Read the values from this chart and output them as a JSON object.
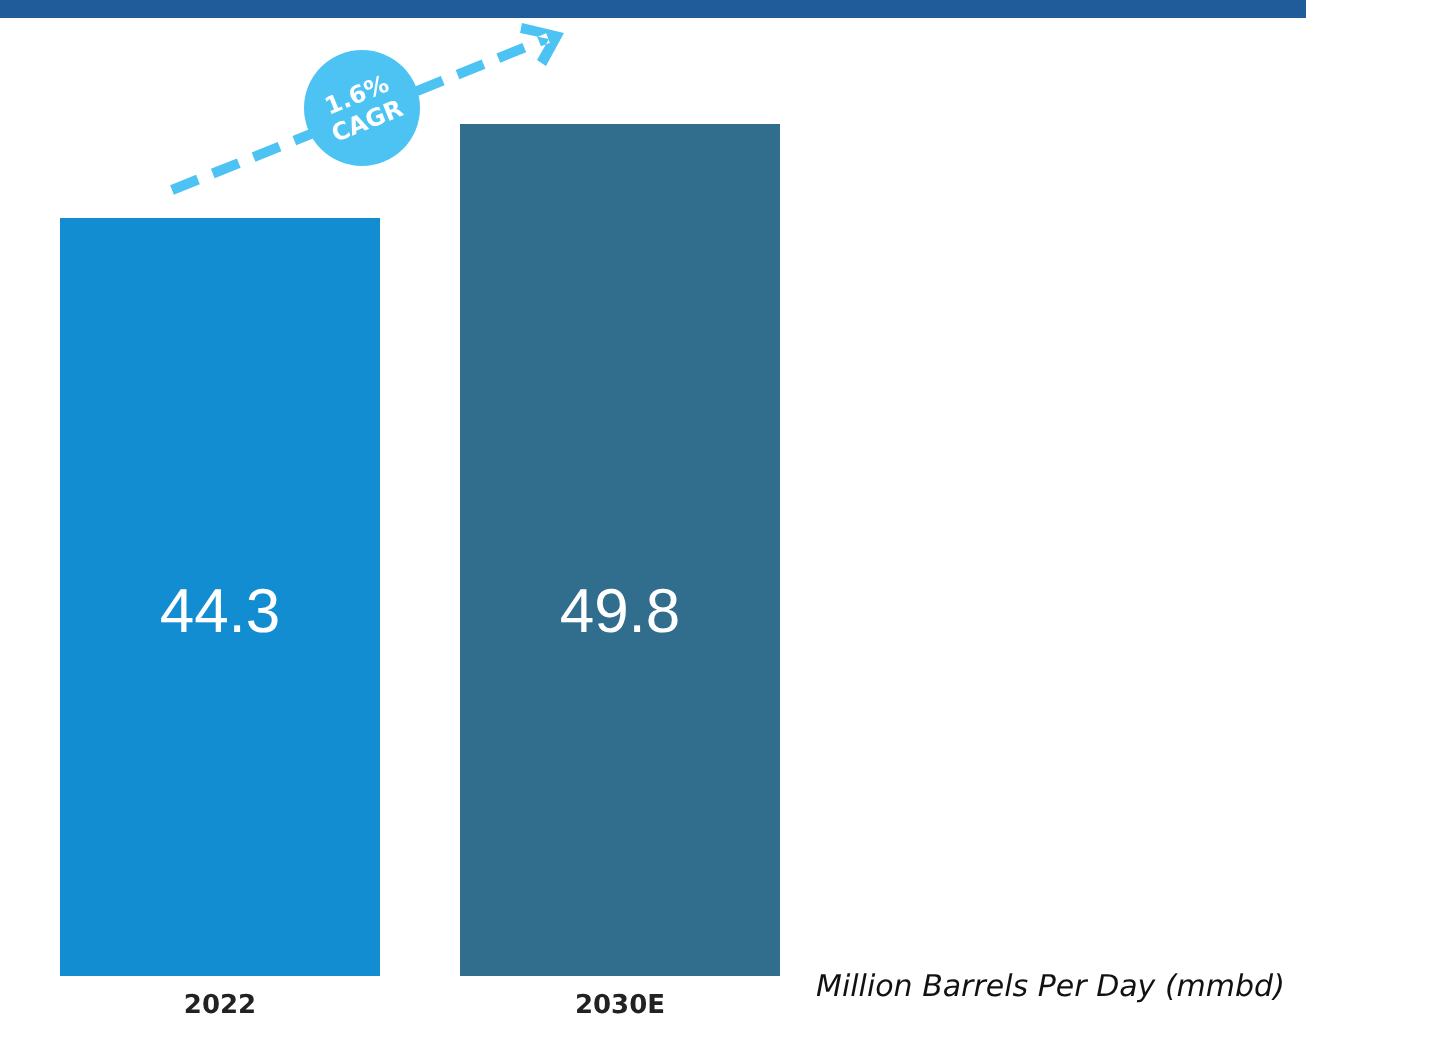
{
  "chart_data": {
    "type": "bar",
    "categories": [
      "2022",
      "2030E"
    ],
    "values": [
      44.3,
      49.8
    ],
    "colors": [
      "#138dd2",
      "#316d8c"
    ],
    "data_labels": true,
    "xlabel": "Million Barrels Per Day (mmbd)",
    "annotations": [
      "1.6% CAGR"
    ]
  }
}
